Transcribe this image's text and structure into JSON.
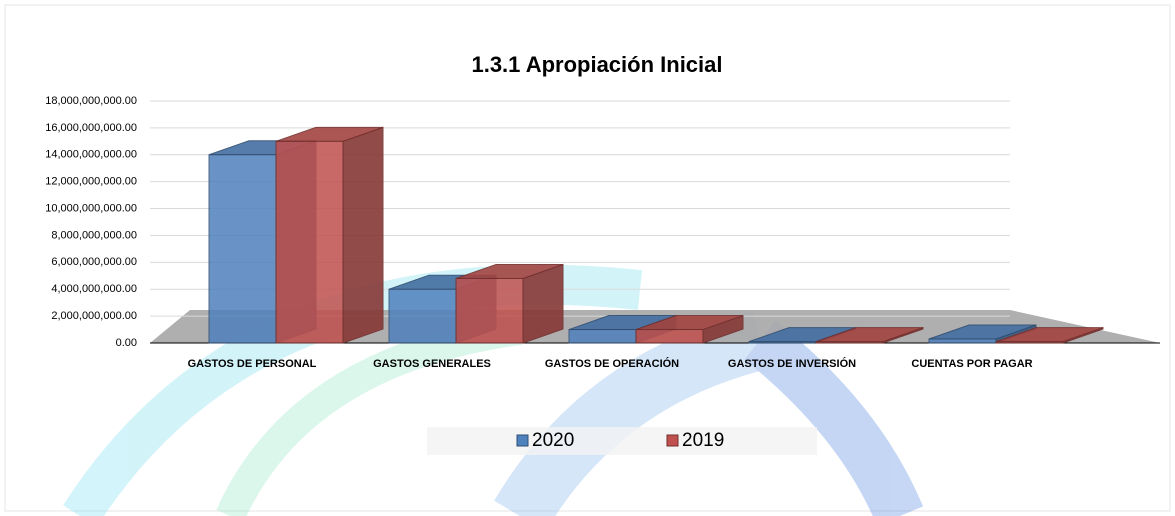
{
  "chart_data": {
    "type": "bar",
    "title": "1.3.1 Apropiación Inicial",
    "categories": [
      "GASTOS DE PERSONAL",
      "GASTOS GENERALES",
      "GASTOS DE OPERACIÓN",
      "GASTOS DE INVERSIÓN",
      "CUENTAS POR PAGAR"
    ],
    "series": [
      {
        "name": "2020",
        "color": "#4f81bd",
        "values": [
          14000000000,
          4000000000,
          1000000000,
          100000000,
          300000000
        ]
      },
      {
        "name": "2019",
        "color": "#c0504d",
        "values": [
          15000000000,
          4800000000,
          1000000000,
          100000000,
          100000000
        ]
      }
    ],
    "ylim": [
      0,
      18000000000
    ],
    "yticks": [
      {
        "value": 0,
        "label": "0.00"
      },
      {
        "value": 2000000000,
        "label": "2,000,000,000.00"
      },
      {
        "value": 4000000000,
        "label": "4,000,000,000.00"
      },
      {
        "value": 6000000000,
        "label": "6,000,000,000.00"
      },
      {
        "value": 8000000000,
        "label": "8,000,000,000.00"
      },
      {
        "value": 10000000000,
        "label": "10,000,000,000.00"
      },
      {
        "value": 12000000000,
        "label": "12,000,000,000.00"
      },
      {
        "value": 14000000000,
        "label": "14,000,000,000.00"
      },
      {
        "value": 16000000000,
        "label": "16,000,000,000.00"
      },
      {
        "value": 18000000000,
        "label": "18,000,000,000.00"
      }
    ],
    "grid": true,
    "legend": "bottom"
  }
}
